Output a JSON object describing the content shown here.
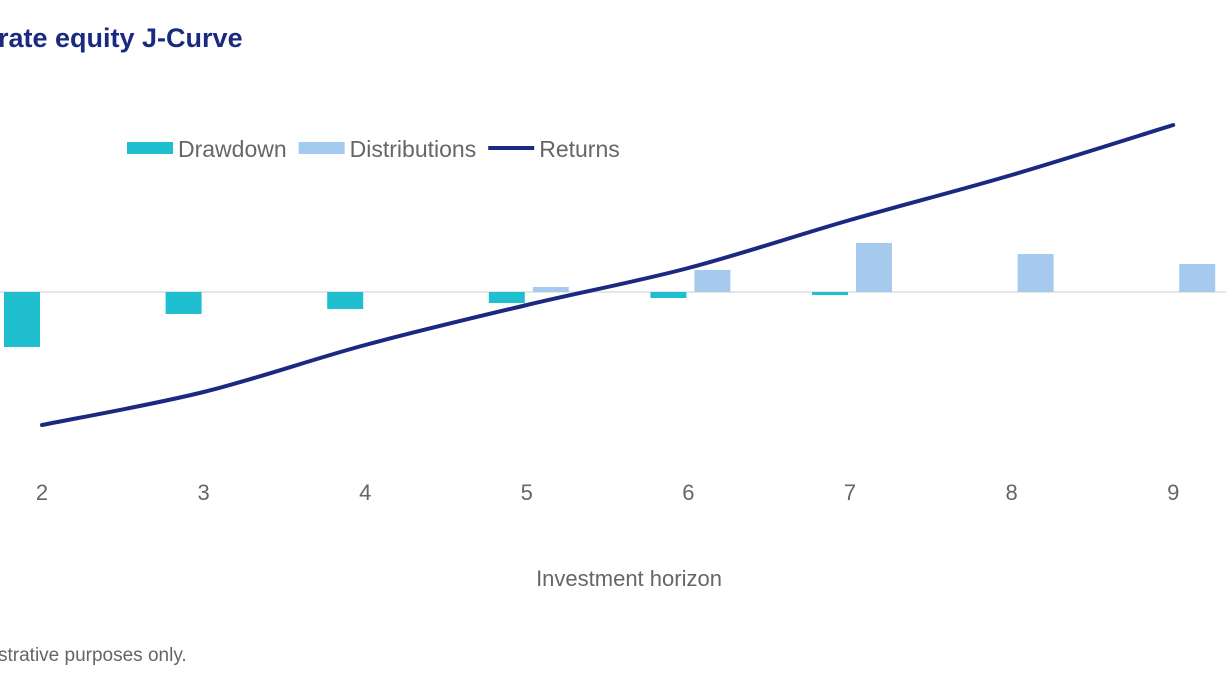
{
  "chart_data": {
    "type": "bar",
    "title": "rate equity J-Curve",
    "x_label": "Investment horizon",
    "footnote": "strative purposes only.",
    "categories": [
      "2",
      "3",
      "4",
      "5",
      "6",
      "7",
      "8",
      "9"
    ],
    "ylim": [
      -25,
      20
    ],
    "series": [
      {
        "name": "Drawdown",
        "type": "bar",
        "color": "#1fbfcf",
        "values": [
          -5.5,
          -2.2,
          -1.7,
          -1.1,
          -0.6,
          -0.3,
          0,
          0
        ]
      },
      {
        "name": "Distributions",
        "type": "bar",
        "color": "#a6c9ee",
        "values": [
          0,
          0,
          0,
          0.5,
          2.2,
          4.9,
          3.8,
          2.8
        ]
      },
      {
        "name": "Returns",
        "type": "line",
        "color": "#1b2a80",
        "values": [
          -13.3,
          -10,
          -5.3,
          -1.3,
          2.4,
          7.2,
          11.7,
          16.7
        ]
      }
    ]
  }
}
